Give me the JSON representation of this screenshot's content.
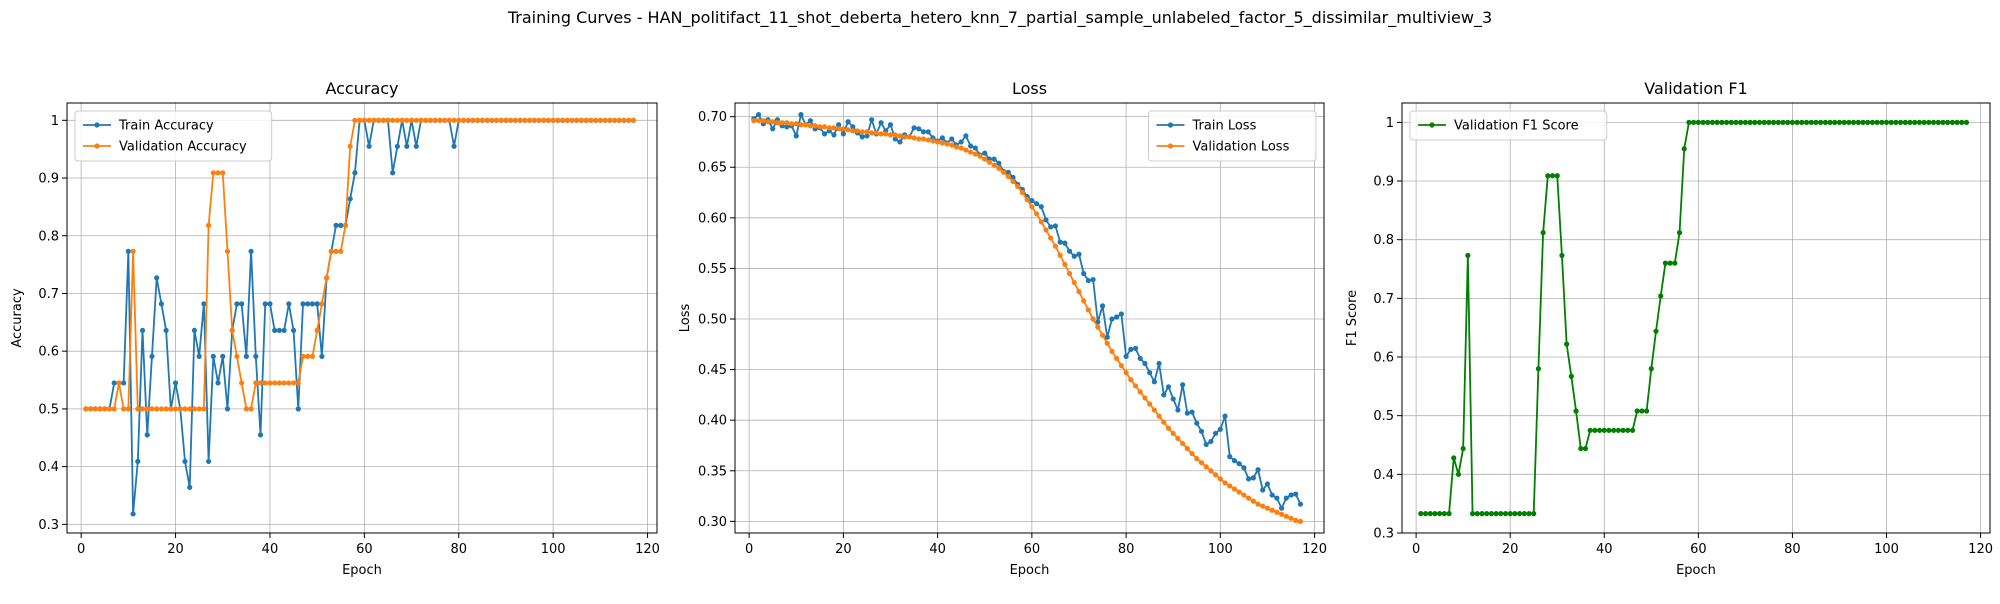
{
  "figure": {
    "suptitle": "Training Curves - HAN_politifact_11_shot_deberta_hetero_knn_7_partial_sample_unlabeled_factor_5_dissimilar_multiview_3"
  },
  "colors": {
    "blue": "#1f77b4",
    "orange": "#ff7f0e",
    "green": "#008000",
    "grid": "#b0b0b0"
  },
  "chart_data": [
    {
      "type": "line",
      "title": "Accuracy",
      "xlabel": "Epoch",
      "ylabel": "Accuracy",
      "xlim": [
        -3,
        122
      ],
      "ylim": [
        0.285,
        1.03
      ],
      "xticks": [
        0,
        20,
        40,
        60,
        80,
        100,
        120
      ],
      "yticks": [
        0.3,
        0.4,
        0.5,
        0.6,
        0.7,
        0.8,
        0.9,
        1.0
      ],
      "grid": true,
      "legend": "top-left",
      "series": [
        {
          "name": "Train Accuracy",
          "color": "#1f77b4",
          "x_start": 1,
          "values": [
            0.5,
            0.5,
            0.5,
            0.5,
            0.5,
            0.5,
            0.545,
            0.545,
            0.545,
            0.773,
            0.318,
            0.409,
            0.636,
            0.455,
            0.591,
            0.727,
            0.682,
            0.636,
            0.5,
            0.545,
            0.5,
            0.409,
            0.364,
            0.636,
            0.591,
            0.682,
            0.409,
            0.591,
            0.545,
            0.591,
            0.5,
            0.636,
            0.682,
            0.682,
            0.591,
            0.773,
            0.591,
            0.455,
            0.682,
            0.682,
            0.636,
            0.636,
            0.636,
            0.682,
            0.636,
            0.5,
            0.682,
            0.682,
            0.682,
            0.682,
            0.591,
            0.727,
            0.773,
            0.818,
            0.818,
            0.818,
            0.864,
            0.909,
            1.0,
            1.0,
            0.955,
            1.0,
            1.0,
            1.0,
            1.0,
            0.909,
            0.955,
            1.0,
            0.955,
            1.0,
            0.955,
            1.0,
            1.0,
            1.0,
            1.0,
            1.0,
            1.0,
            1.0,
            0.955,
            1.0,
            1.0,
            1.0,
            1.0,
            1.0,
            1.0,
            1.0,
            1.0,
            1.0,
            1.0,
            1.0,
            1.0,
            1.0,
            1.0,
            1.0,
            1.0,
            1.0,
            1.0,
            1.0,
            1.0,
            1.0,
            1.0,
            1.0,
            1.0,
            1.0,
            1.0,
            1.0,
            1.0,
            1.0,
            1.0,
            1.0,
            1.0,
            1.0,
            1.0,
            1.0,
            1.0,
            1.0,
            1.0
          ]
        },
        {
          "name": "Validation Accuracy",
          "color": "#ff7f0e",
          "x_start": 1,
          "values": [
            0.5,
            0.5,
            0.5,
            0.5,
            0.5,
            0.5,
            0.5,
            0.545,
            0.5,
            0.5,
            0.773,
            0.5,
            0.5,
            0.5,
            0.5,
            0.5,
            0.5,
            0.5,
            0.5,
            0.5,
            0.5,
            0.5,
            0.5,
            0.5,
            0.5,
            0.5,
            0.818,
            0.909,
            0.909,
            0.909,
            0.773,
            0.636,
            0.591,
            0.545,
            0.5,
            0.5,
            0.545,
            0.545,
            0.545,
            0.545,
            0.545,
            0.545,
            0.545,
            0.545,
            0.545,
            0.545,
            0.591,
            0.591,
            0.591,
            0.636,
            0.682,
            0.727,
            0.773,
            0.773,
            0.773,
            0.818,
            0.955,
            1.0,
            1.0,
            1.0,
            1.0,
            1.0,
            1.0,
            1.0,
            1.0,
            1.0,
            1.0,
            1.0,
            1.0,
            1.0,
            1.0,
            1.0,
            1.0,
            1.0,
            1.0,
            1.0,
            1.0,
            1.0,
            1.0,
            1.0,
            1.0,
            1.0,
            1.0,
            1.0,
            1.0,
            1.0,
            1.0,
            1.0,
            1.0,
            1.0,
            1.0,
            1.0,
            1.0,
            1.0,
            1.0,
            1.0,
            1.0,
            1.0,
            1.0,
            1.0,
            1.0,
            1.0,
            1.0,
            1.0,
            1.0,
            1.0,
            1.0,
            1.0,
            1.0,
            1.0,
            1.0,
            1.0,
            1.0,
            1.0,
            1.0,
            1.0,
            1.0
          ]
        }
      ]
    },
    {
      "type": "line",
      "title": "Loss",
      "xlabel": "Epoch",
      "ylabel": "Loss",
      "xlim": [
        -3,
        122
      ],
      "ylim": [
        0.2885,
        0.7135
      ],
      "xticks": [
        0,
        20,
        40,
        60,
        80,
        100,
        120
      ],
      "yticks": [
        0.3,
        0.35,
        0.4,
        0.45,
        0.5,
        0.55,
        0.6,
        0.65,
        0.7
      ],
      "ytick_labels": [
        "0.30",
        "0.35",
        "0.40",
        "0.45",
        "0.50",
        "0.55",
        "0.60",
        "0.65",
        "0.70"
      ],
      "grid": true,
      "legend": "top-right",
      "series": [
        {
          "name": "Train Loss",
          "color": "#1f77b4",
          "x_start": 1,
          "values": [
            0.698,
            0.702,
            0.693,
            0.697,
            0.688,
            0.697,
            0.691,
            0.69,
            0.691,
            0.681,
            0.702,
            0.692,
            0.696,
            0.688,
            0.689,
            0.683,
            0.686,
            0.682,
            0.692,
            0.683,
            0.695,
            0.69,
            0.684,
            0.68,
            0.681,
            0.697,
            0.683,
            0.694,
            0.686,
            0.692,
            0.678,
            0.675,
            0.682,
            0.68,
            0.689,
            0.688,
            0.685,
            0.685,
            0.679,
            0.676,
            0.679,
            0.674,
            0.678,
            0.672,
            0.675,
            0.681,
            0.671,
            0.669,
            0.662,
            0.664,
            0.658,
            0.658,
            0.654,
            0.646,
            0.645,
            0.64,
            0.633,
            0.628,
            0.621,
            0.617,
            0.614,
            0.611,
            0.598,
            0.591,
            0.592,
            0.576,
            0.575,
            0.567,
            0.562,
            0.564,
            0.545,
            0.538,
            0.539,
            0.497,
            0.513,
            0.482,
            0.5,
            0.502,
            0.505,
            0.463,
            0.47,
            0.471,
            0.461,
            0.456,
            0.447,
            0.438,
            0.456,
            0.425,
            0.433,
            0.421,
            0.41,
            0.435,
            0.407,
            0.408,
            0.397,
            0.389,
            0.376,
            0.379,
            0.387,
            0.391,
            0.404,
            0.364,
            0.36,
            0.357,
            0.353,
            0.342,
            0.343,
            0.351,
            0.331,
            0.337,
            0.326,
            0.323,
            0.313,
            0.323,
            0.326,
            0.327,
            0.317
          ]
        },
        {
          "name": "Validation Loss",
          "color": "#ff7f0e",
          "x_start": 1,
          "values": [
            0.696,
            0.696,
            0.696,
            0.695,
            0.695,
            0.694,
            0.694,
            0.694,
            0.693,
            0.693,
            0.692,
            0.692,
            0.691,
            0.691,
            0.69,
            0.69,
            0.689,
            0.689,
            0.688,
            0.688,
            0.687,
            0.686,
            0.686,
            0.685,
            0.685,
            0.684,
            0.684,
            0.683,
            0.683,
            0.682,
            0.682,
            0.681,
            0.68,
            0.68,
            0.679,
            0.678,
            0.678,
            0.677,
            0.676,
            0.675,
            0.674,
            0.673,
            0.672,
            0.67,
            0.669,
            0.667,
            0.665,
            0.663,
            0.661,
            0.658,
            0.655,
            0.652,
            0.649,
            0.645,
            0.641,
            0.636,
            0.631,
            0.625,
            0.618,
            0.611,
            0.604,
            0.596,
            0.588,
            0.58,
            0.572,
            0.563,
            0.554,
            0.545,
            0.536,
            0.527,
            0.518,
            0.509,
            0.5,
            0.492,
            0.484,
            0.476,
            0.468,
            0.461,
            0.454,
            0.447,
            0.44,
            0.434,
            0.428,
            0.422,
            0.416,
            0.41,
            0.404,
            0.398,
            0.392,
            0.387,
            0.382,
            0.377,
            0.372,
            0.367,
            0.362,
            0.358,
            0.354,
            0.35,
            0.346,
            0.342,
            0.338,
            0.335,
            0.332,
            0.329,
            0.326,
            0.323,
            0.32,
            0.317,
            0.315,
            0.313,
            0.311,
            0.309,
            0.307,
            0.305,
            0.303,
            0.301,
            0.3
          ]
        }
      ]
    },
    {
      "type": "line",
      "title": "Validation F1",
      "xlabel": "Epoch",
      "ylabel": "F1 Score",
      "xlim": [
        -3,
        122
      ],
      "ylim": [
        0.3,
        1.033
      ],
      "xticks": [
        0,
        20,
        40,
        60,
        80,
        100,
        120
      ],
      "yticks": [
        0.3,
        0.4,
        0.5,
        0.6,
        0.7,
        0.8,
        0.9,
        1.0
      ],
      "grid": true,
      "legend": "top-left",
      "series": [
        {
          "name": "Validation F1 Score",
          "color": "#008000",
          "x_start": 1,
          "values": [
            0.333,
            0.333,
            0.333,
            0.333,
            0.333,
            0.333,
            0.333,
            0.428,
            0.4,
            0.444,
            0.773,
            0.333,
            0.333,
            0.333,
            0.333,
            0.333,
            0.333,
            0.333,
            0.333,
            0.333,
            0.333,
            0.333,
            0.333,
            0.333,
            0.333,
            0.58,
            0.812,
            0.909,
            0.909,
            0.909,
            0.773,
            0.622,
            0.567,
            0.508,
            0.444,
            0.444,
            0.475,
            0.475,
            0.475,
            0.475,
            0.475,
            0.475,
            0.475,
            0.475,
            0.475,
            0.475,
            0.508,
            0.508,
            0.508,
            0.58,
            0.644,
            0.704,
            0.76,
            0.76,
            0.76,
            0.812,
            0.955,
            1.0,
            1.0,
            1.0,
            1.0,
            1.0,
            1.0,
            1.0,
            1.0,
            1.0,
            1.0,
            1.0,
            1.0,
            1.0,
            1.0,
            1.0,
            1.0,
            1.0,
            1.0,
            1.0,
            1.0,
            1.0,
            1.0,
            1.0,
            1.0,
            1.0,
            1.0,
            1.0,
            1.0,
            1.0,
            1.0,
            1.0,
            1.0,
            1.0,
            1.0,
            1.0,
            1.0,
            1.0,
            1.0,
            1.0,
            1.0,
            1.0,
            1.0,
            1.0,
            1.0,
            1.0,
            1.0,
            1.0,
            1.0,
            1.0,
            1.0,
            1.0,
            1.0,
            1.0,
            1.0,
            1.0,
            1.0,
            1.0,
            1.0,
            1.0,
            1.0
          ]
        }
      ]
    }
  ]
}
